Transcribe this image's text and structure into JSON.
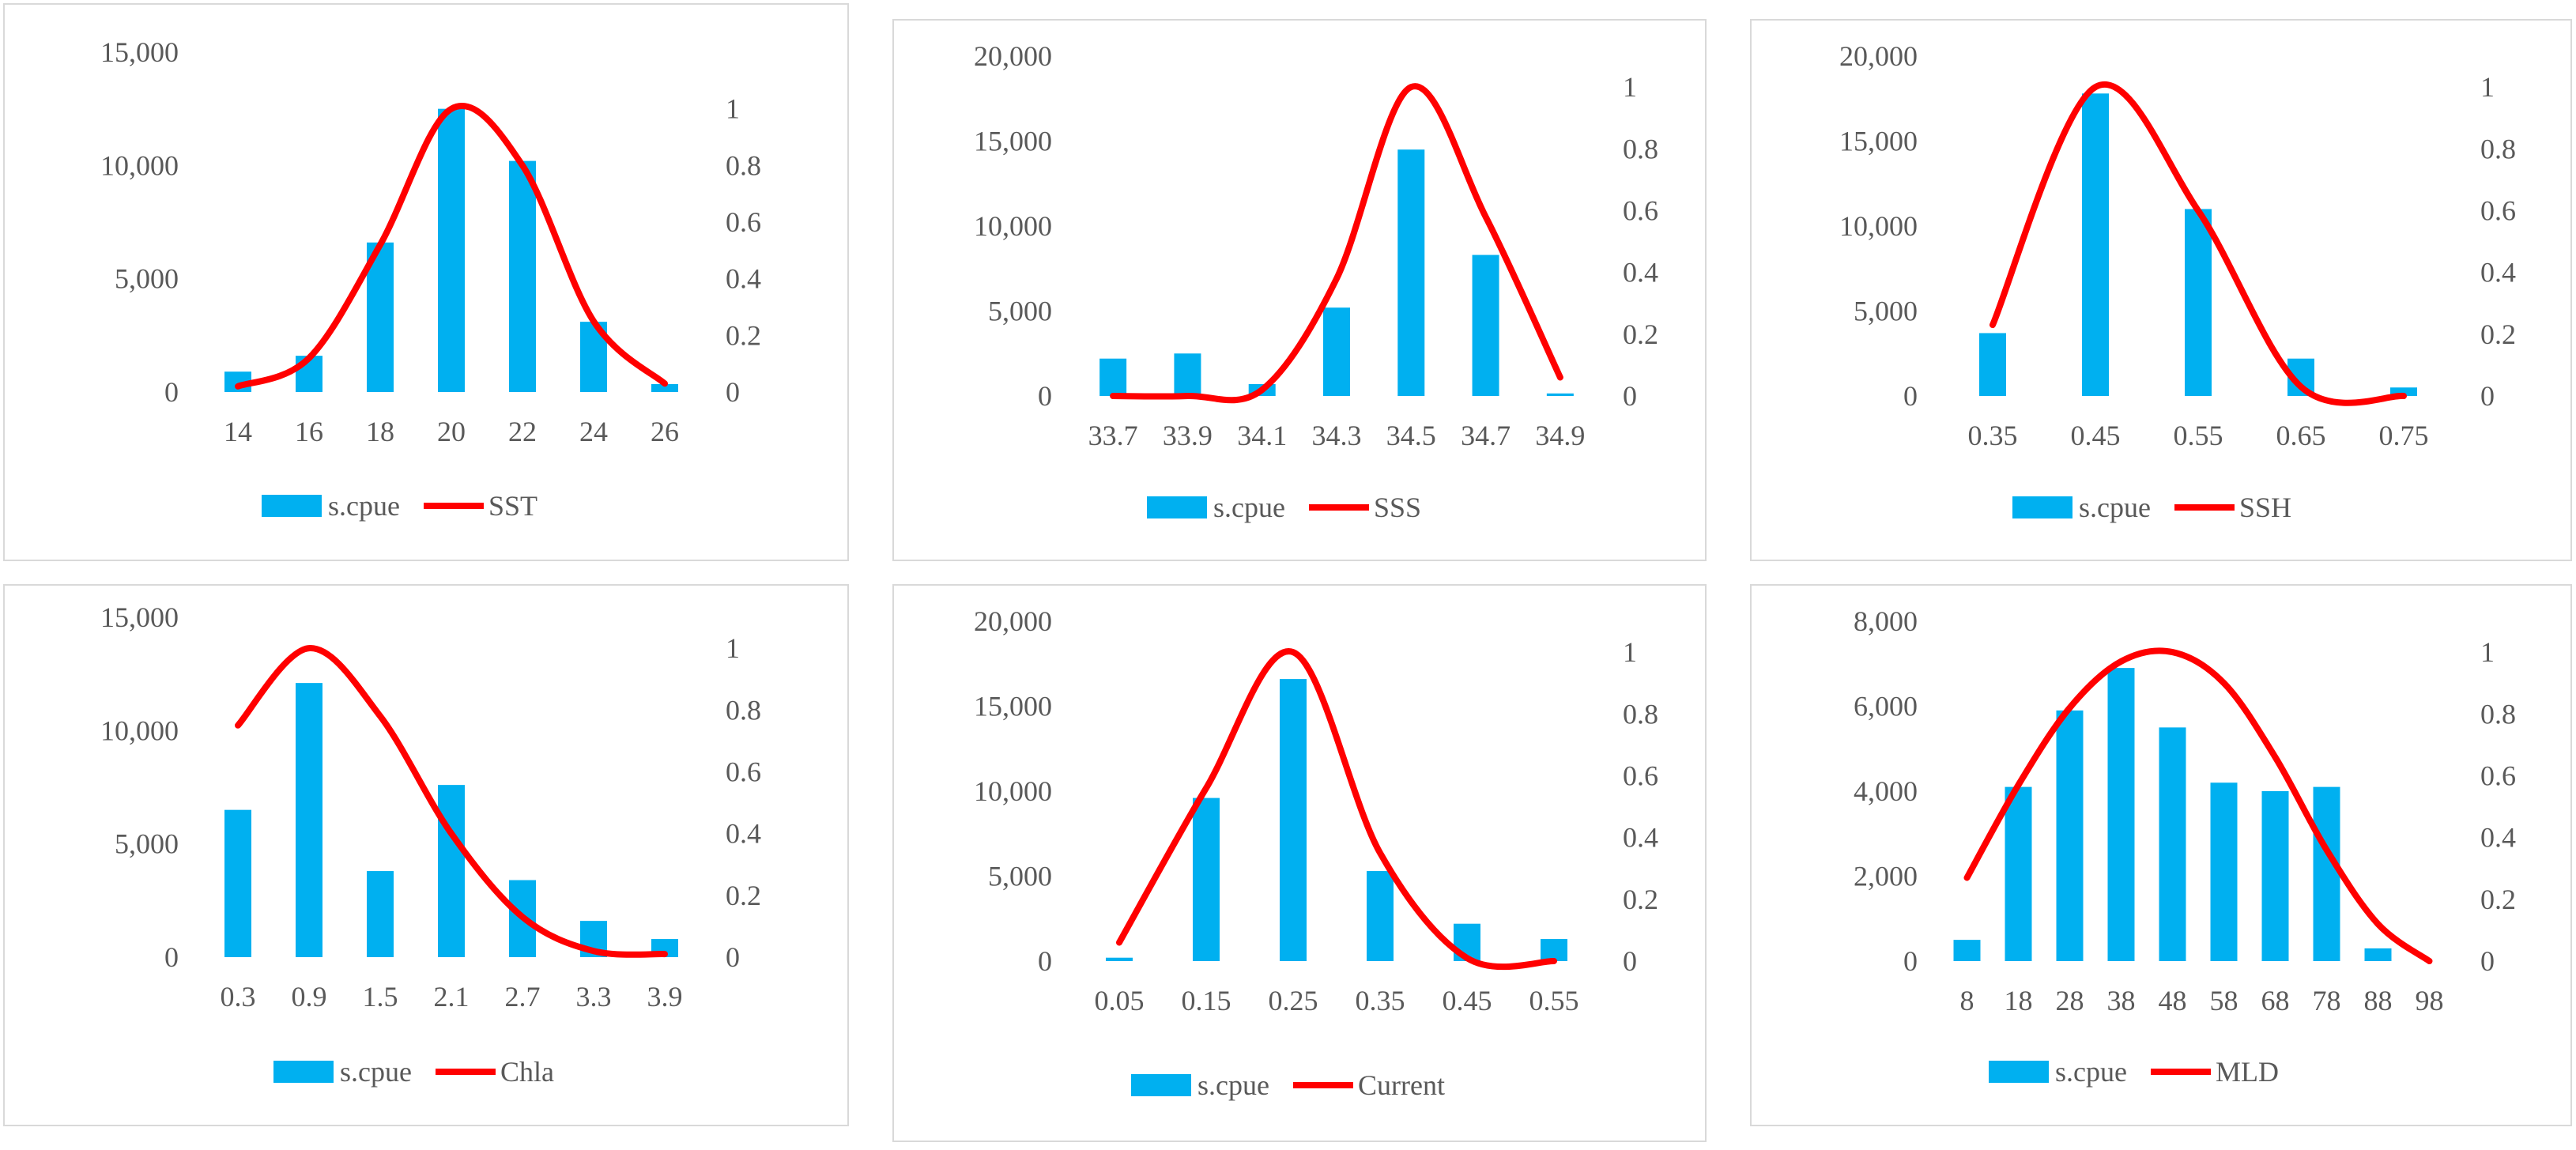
{
  "colors": {
    "bar": "#00B0F0",
    "line": "#FF0000",
    "tick_text": "#595959",
    "border": "#D9D9D9"
  },
  "chart_data": [
    {
      "type": "bar+line",
      "categories": [
        "14",
        "16",
        "18",
        "20",
        "22",
        "24",
        "26"
      ],
      "series": [
        {
          "name": "s.cpue",
          "type": "bar",
          "axis": "left",
          "values": [
            900,
            1600,
            6600,
            12500,
            10200,
            3100,
            350
          ]
        },
        {
          "name": "SST",
          "type": "smooth-line",
          "axis": "right",
          "values": [
            0.02,
            0.12,
            0.52,
            1.0,
            0.8,
            0.25,
            0.03
          ]
        }
      ],
      "y_left": {
        "range": [
          0,
          15000
        ],
        "ticks": [
          "0",
          "5,000",
          "10,000",
          "15,000"
        ],
        "tick_values": [
          0,
          5000,
          10000,
          15000
        ]
      },
      "y_right": {
        "range": [
          0,
          1.2
        ],
        "ticks": [
          "0",
          "0.2",
          "0.4",
          "0.6",
          "0.8",
          "1"
        ],
        "tick_values": [
          0,
          0.2,
          0.4,
          0.6,
          0.8,
          1
        ]
      },
      "legend": {
        "position": "bottom",
        "entries": [
          "s.cpue",
          "SST"
        ]
      }
    },
    {
      "type": "bar+line",
      "categories": [
        "33.7",
        "33.9",
        "34.1",
        "34.3",
        "34.5",
        "34.7",
        "34.9"
      ],
      "series": [
        {
          "name": "s.cpue",
          "type": "bar",
          "axis": "left",
          "values": [
            2200,
            2500,
            700,
            5200,
            14500,
            8300,
            150
          ]
        },
        {
          "name": "SSS",
          "type": "smooth-line",
          "axis": "right",
          "values": [
            0.0,
            0.0,
            0.02,
            0.38,
            1.0,
            0.58,
            0.06
          ]
        }
      ],
      "y_left": {
        "range": [
          0,
          20000
        ],
        "ticks": [
          "0",
          "5,000",
          "10,000",
          "15,000",
          "20,000"
        ],
        "tick_values": [
          0,
          5000,
          10000,
          15000,
          20000
        ]
      },
      "y_right": {
        "range": [
          0,
          1.1
        ],
        "ticks": [
          "0",
          "0.2",
          "0.4",
          "0.6",
          "0.8",
          "1"
        ],
        "tick_values": [
          0,
          0.2,
          0.4,
          0.6,
          0.8,
          1
        ]
      },
      "legend": {
        "position": "bottom",
        "entries": [
          "s.cpue",
          "SSS"
        ]
      }
    },
    {
      "type": "bar+line",
      "categories": [
        "0.35",
        "0.45",
        "0.55",
        "0.65",
        "0.75"
      ],
      "series": [
        {
          "name": "s.cpue",
          "type": "bar",
          "axis": "left",
          "values": [
            3700,
            17800,
            11000,
            2200,
            500
          ]
        },
        {
          "name": "SSH",
          "type": "smooth-line",
          "axis": "right",
          "values": [
            0.23,
            1.0,
            0.6,
            0.03,
            0.0
          ]
        }
      ],
      "y_left": {
        "range": [
          0,
          20000
        ],
        "ticks": [
          "0",
          "5,000",
          "10,000",
          "15,000",
          "20,000"
        ],
        "tick_values": [
          0,
          5000,
          10000,
          15000,
          20000
        ]
      },
      "y_right": {
        "range": [
          0,
          1.1
        ],
        "ticks": [
          "0",
          "0.2",
          "0.4",
          "0.6",
          "0.8",
          "1"
        ],
        "tick_values": [
          0,
          0.2,
          0.4,
          0.6,
          0.8,
          1
        ]
      },
      "legend": {
        "position": "bottom",
        "entries": [
          "s.cpue",
          "SSH"
        ]
      }
    },
    {
      "type": "bar+line",
      "categories": [
        "0.3",
        "0.9",
        "1.5",
        "2.1",
        "2.7",
        "3.3",
        "3.9"
      ],
      "series": [
        {
          "name": "s.cpue",
          "type": "bar",
          "axis": "left",
          "values": [
            6500,
            12100,
            3800,
            7600,
            3400,
            1600,
            800
          ]
        },
        {
          "name": "Chla",
          "type": "smooth-line",
          "axis": "right",
          "values": [
            0.75,
            1.0,
            0.78,
            0.4,
            0.13,
            0.02,
            0.01
          ]
        }
      ],
      "y_left": {
        "range": [
          0,
          15000
        ],
        "ticks": [
          "0",
          "5,000",
          "10,000",
          "15,000"
        ],
        "tick_values": [
          0,
          5000,
          10000,
          15000
        ]
      },
      "y_right": {
        "range": [
          0,
          1.1
        ],
        "ticks": [
          "0",
          "0.2",
          "0.4",
          "0.6",
          "0.8",
          "1"
        ],
        "tick_values": [
          0,
          0.2,
          0.4,
          0.6,
          0.8,
          1
        ]
      },
      "legend": {
        "position": "bottom",
        "entries": [
          "s.cpue",
          "Chla"
        ]
      }
    },
    {
      "type": "bar+line",
      "categories": [
        "0.05",
        "0.15",
        "0.25",
        "0.35",
        "0.45",
        "0.55"
      ],
      "series": [
        {
          "name": "s.cpue",
          "type": "bar",
          "axis": "left",
          "values": [
            200,
            9600,
            16600,
            5300,
            2200,
            1300
          ]
        },
        {
          "name": "Current",
          "type": "smooth-line",
          "axis": "right",
          "values": [
            0.06,
            0.56,
            1.0,
            0.35,
            0.01,
            0.0
          ]
        }
      ],
      "y_left": {
        "range": [
          0,
          20000
        ],
        "ticks": [
          "0",
          "5,000",
          "10,000",
          "15,000",
          "20,000"
        ],
        "tick_values": [
          0,
          5000,
          10000,
          15000,
          20000
        ]
      },
      "y_right": {
        "range": [
          0,
          1.1
        ],
        "ticks": [
          "0",
          "0.2",
          "0.4",
          "0.6",
          "0.8",
          "1"
        ],
        "tick_values": [
          0,
          0.2,
          0.4,
          0.6,
          0.8,
          1
        ]
      },
      "legend": {
        "position": "bottom",
        "entries": [
          "s.cpue",
          "Current"
        ]
      }
    },
    {
      "type": "bar+line",
      "categories": [
        "8",
        "18",
        "28",
        "38",
        "48",
        "58",
        "68",
        "78",
        "88",
        "98"
      ],
      "series": [
        {
          "name": "s.cpue",
          "type": "bar",
          "axis": "left",
          "values": [
            500,
            4100,
            5900,
            6900,
            5500,
            4200,
            4000,
            4100,
            300,
            0
          ]
        },
        {
          "name": "MLD",
          "type": "smooth-line",
          "axis": "right",
          "values": [
            0.27,
            0.57,
            0.82,
            0.97,
            1.0,
            0.9,
            0.66,
            0.36,
            0.12,
            0.0
          ]
        }
      ],
      "y_left": {
        "range": [
          0,
          8000
        ],
        "ticks": [
          "0",
          "2,000",
          "4,000",
          "6,000",
          "8,000"
        ],
        "tick_values": [
          0,
          2000,
          4000,
          6000,
          8000
        ]
      },
      "y_right": {
        "range": [
          0,
          1.1
        ],
        "ticks": [
          "0",
          "0.2",
          "0.4",
          "0.6",
          "0.8",
          "1"
        ],
        "tick_values": [
          0,
          0.2,
          0.4,
          0.6,
          0.8,
          1
        ]
      },
      "legend": {
        "position": "bottom",
        "entries": [
          "s.cpue",
          "MLD"
        ]
      }
    }
  ]
}
